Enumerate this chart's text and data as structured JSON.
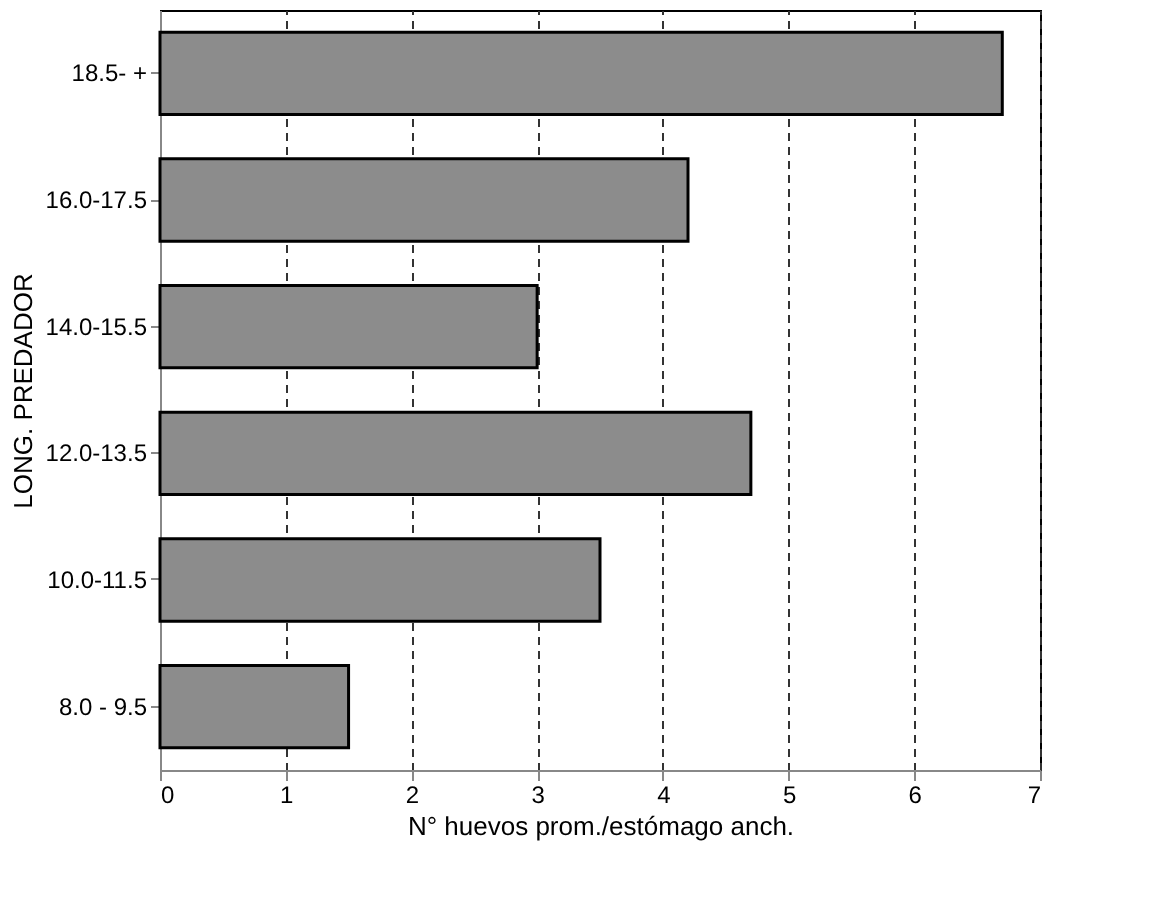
{
  "chart_data": {
    "type": "bar",
    "orientation": "horizontal",
    "xlabel": "N° huevos prom./estómago anch.",
    "ylabel": "LONG. PREDADOR",
    "categories": [
      "18.5- +",
      "16.0-17.5",
      "14.0-15.5",
      "12.0-13.5",
      "10.0-11.5",
      "8.0 - 9.5"
    ],
    "values": [
      6.7,
      4.2,
      3.0,
      4.7,
      3.5,
      1.5
    ],
    "color": "#8c8c8c",
    "xlim": [
      0,
      7
    ],
    "xticks": [
      0,
      1,
      2,
      3,
      4,
      5,
      6,
      7
    ],
    "grid": "x"
  }
}
